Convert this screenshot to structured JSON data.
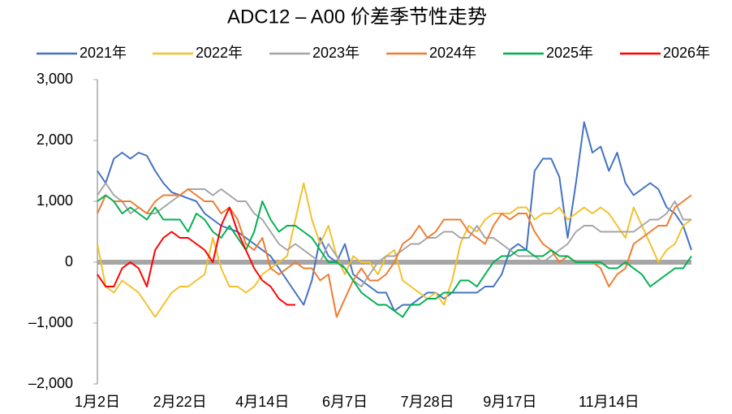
{
  "chart_data": {
    "type": "line",
    "title": "ADC12 – A00 价差季节性走势",
    "categories": [
      "1月2日",
      null,
      null,
      null,
      null,
      null,
      null,
      null,
      null,
      null,
      "2月22日",
      null,
      null,
      null,
      null,
      null,
      null,
      null,
      null,
      null,
      "4月14日",
      null,
      null,
      null,
      null,
      null,
      null,
      null,
      null,
      null,
      "6月7日",
      null,
      null,
      null,
      null,
      null,
      null,
      null,
      null,
      null,
      "7月28日",
      null,
      null,
      null,
      null,
      null,
      null,
      null,
      null,
      null,
      "9月17日",
      null,
      null,
      null,
      null,
      null,
      null,
      null,
      null,
      null,
      null,
      null,
      "11月14日",
      null,
      null,
      null,
      null,
      null,
      null,
      null,
      null,
      null,
      null
    ],
    "ylim": [
      -2000,
      3000
    ],
    "yticks": [
      {
        "value": -2000,
        "label": "–2,000"
      },
      {
        "value": -1000,
        "label": "–1,000"
      },
      0,
      {
        "value": 1000,
        "label": "1,000"
      },
      {
        "value": 2000,
        "label": "2,000"
      },
      {
        "value": 3000,
        "label": "3,000"
      }
    ],
    "grid": false,
    "legend": "top",
    "series": [
      {
        "name": "2021年",
        "color": "#4472c4",
        "values": [
          1500,
          1300,
          1700,
          1800,
          1700,
          1800,
          1750,
          1500,
          1300,
          1150,
          1100,
          1050,
          1000,
          800,
          700,
          600,
          550,
          500,
          400,
          300,
          200,
          100,
          -100,
          -300,
          -500,
          -700,
          -300,
          400,
          100,
          0,
          300,
          -200,
          -300,
          -400,
          -500,
          -500,
          -800,
          -700,
          -700,
          -600,
          -500,
          -500,
          -600,
          -500,
          -500,
          -500,
          -500,
          -400,
          -400,
          -200,
          200,
          300,
          200,
          1500,
          1700,
          1700,
          1400,
          400,
          1300,
          2300,
          1800,
          1900,
          1500,
          1800,
          1300,
          1100,
          1200,
          1300,
          1200,
          900,
          800,
          600,
          200
        ]
      },
      {
        "name": "2022年",
        "color": "#f2c12e",
        "values": [
          300,
          -400,
          -500,
          -300,
          -400,
          -500,
          -700,
          -900,
          -700,
          -500,
          -400,
          -400,
          -300,
          -200,
          400,
          -100,
          -400,
          -400,
          -500,
          -400,
          -200,
          -100,
          0,
          100,
          700,
          1300,
          700,
          300,
          600,
          100,
          -200,
          100,
          0,
          0,
          -200,
          100,
          200,
          -300,
          -400,
          -500,
          -600,
          -500,
          -700,
          -300,
          300,
          600,
          500,
          700,
          800,
          800,
          800,
          900,
          900,
          700,
          800,
          800,
          900,
          700,
          800,
          900,
          800,
          900,
          800,
          600,
          400,
          900,
          600,
          300,
          0,
          200,
          300,
          600,
          700
        ]
      },
      {
        "name": "2023年",
        "color": "#a5a5a5",
        "values": [
          1100,
          1300,
          1100,
          1000,
          800,
          900,
          800,
          800,
          900,
          1000,
          1100,
          1200,
          1200,
          1200,
          1100,
          1200,
          1100,
          1000,
          1000,
          800,
          700,
          500,
          300,
          200,
          300,
          200,
          100,
          0,
          300,
          100,
          -100,
          -300,
          -400,
          -200,
          0,
          100,
          100,
          200,
          300,
          300,
          400,
          400,
          500,
          500,
          400,
          400,
          600,
          400,
          400,
          300,
          200,
          100,
          100,
          100,
          0,
          100,
          200,
          300,
          500,
          600,
          600,
          500,
          500,
          500,
          500,
          500,
          600,
          700,
          700,
          800,
          1000,
          700,
          700
        ]
      },
      {
        "name": "2024年",
        "color": "#ed7d31",
        "values": [
          800,
          1100,
          1000,
          1000,
          1000,
          900,
          800,
          1000,
          1100,
          1100,
          1100,
          1200,
          1100,
          1000,
          1000,
          800,
          900,
          700,
          300,
          200,
          400,
          -100,
          -200,
          -100,
          0,
          -100,
          -100,
          -300,
          -200,
          -900,
          -600,
          -300,
          -100,
          -300,
          -300,
          -200,
          0,
          300,
          400,
          600,
          400,
          500,
          700,
          700,
          700,
          500,
          400,
          300,
          600,
          800,
          700,
          800,
          800,
          500,
          300,
          200,
          0,
          100,
          0,
          0,
          0,
          -100,
          -400,
          -200,
          -100,
          300,
          400,
          500,
          600,
          600,
          900,
          1000,
          1100
        ]
      },
      {
        "name": "2025年",
        "color": "#00b050",
        "values": [
          1000,
          1100,
          1000,
          800,
          900,
          800,
          700,
          900,
          700,
          700,
          700,
          500,
          800,
          700,
          500,
          400,
          600,
          400,
          200,
          500,
          1000,
          700,
          500,
          600,
          600,
          500,
          400,
          200,
          0,
          0,
          -100,
          -300,
          -500,
          -600,
          -700,
          -700,
          -800,
          -900,
          -700,
          -700,
          -600,
          -600,
          -500,
          -500,
          -300,
          -300,
          -400,
          -200,
          0,
          100,
          100,
          200,
          200,
          100,
          100,
          200,
          100,
          100,
          0,
          0,
          0,
          0,
          -100,
          -100,
          0,
          -100,
          -200,
          -400,
          -300,
          -200,
          -100,
          -100,
          100
        ]
      },
      {
        "name": "2026年",
        "color": "#ff0000",
        "values": [
          -200,
          -400,
          -400,
          -100,
          0,
          -100,
          -400,
          200,
          400,
          500,
          400,
          400,
          300,
          200,
          0,
          600,
          900,
          500,
          200,
          -100,
          -300,
          -400,
          -600,
          -700,
          -700,
          null,
          null,
          null,
          null,
          null,
          null,
          null,
          null,
          null,
          null,
          null,
          null,
          null,
          null,
          null,
          null,
          null,
          null,
          null,
          null,
          null,
          null,
          null,
          null,
          null,
          null,
          null,
          null,
          null,
          null,
          null,
          null,
          null,
          null,
          null,
          null,
          null,
          null,
          null,
          null,
          null,
          null,
          null,
          null,
          null,
          null,
          null,
          null
        ]
      }
    ]
  }
}
